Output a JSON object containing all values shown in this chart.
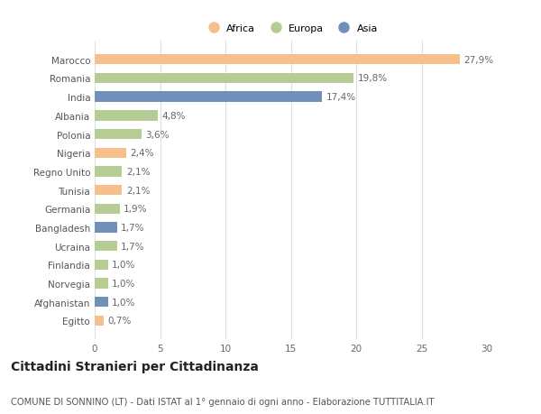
{
  "categories": [
    "Marocco",
    "Romania",
    "India",
    "Albania",
    "Polonia",
    "Nigeria",
    "Regno Unito",
    "Tunisia",
    "Germania",
    "Bangladesh",
    "Ucraina",
    "Finlandia",
    "Norvegia",
    "Afghanistan",
    "Egitto"
  ],
  "values": [
    27.9,
    19.8,
    17.4,
    4.8,
    3.6,
    2.4,
    2.1,
    2.1,
    1.9,
    1.7,
    1.7,
    1.0,
    1.0,
    1.0,
    0.7
  ],
  "labels": [
    "27,9%",
    "19,8%",
    "17,4%",
    "4,8%",
    "3,6%",
    "2,4%",
    "2,1%",
    "2,1%",
    "1,9%",
    "1,7%",
    "1,7%",
    "1,0%",
    "1,0%",
    "1,0%",
    "0,7%"
  ],
  "continents": [
    "Africa",
    "Europa",
    "Asia",
    "Europa",
    "Europa",
    "Africa",
    "Europa",
    "Africa",
    "Europa",
    "Asia",
    "Europa",
    "Europa",
    "Europa",
    "Asia",
    "Africa"
  ],
  "colors": {
    "Africa": "#F5C08C",
    "Europa": "#B5CC95",
    "Asia": "#7090BA"
  },
  "xlim": [
    0,
    30
  ],
  "xticks": [
    0,
    5,
    10,
    15,
    20,
    25,
    30
  ],
  "title": "Cittadini Stranieri per Cittadinanza",
  "subtitle": "COMUNE DI SONNINO (LT) - Dati ISTAT al 1° gennaio di ogni anno - Elaborazione TUTTITALIA.IT",
  "background_color": "#ffffff",
  "bar_height": 0.55,
  "grid_color": "#e0e0e0",
  "label_fontsize": 7.5,
  "tick_fontsize": 7.5,
  "title_fontsize": 10,
  "subtitle_fontsize": 7.2,
  "legend_order": [
    "Africa",
    "Europa",
    "Asia"
  ]
}
